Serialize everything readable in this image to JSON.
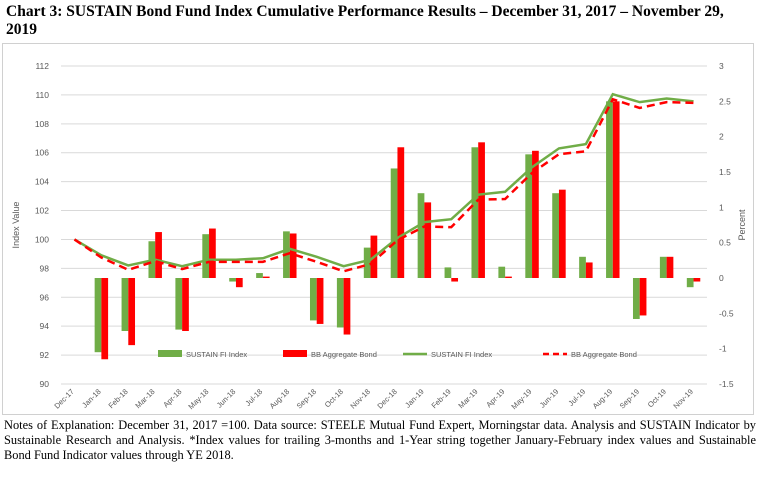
{
  "title": "Chart 3:  SUSTAIN Bond Fund Index Cumulative Performance Results – December 31, 2017 – November 29, 2019",
  "notes": "Notes of Explanation:  December 31, 2017 =100.  Data source:  STEELE Mutual Fund Expert, Morningstar data. Analysis and SUSTAIN Indicator by Sustainable Research and Analysis.  *Index values for trailing 3-months and 1-Year string together January-February index values and Sustainable Bond Fund Indicator values through YE 2018.",
  "colors": {
    "sustain": "#70ad47",
    "bb": "#ff0000",
    "grid": "#d9d9d9",
    "text": "#595959"
  },
  "chart_data": {
    "type": "bar",
    "title": "",
    "categories": [
      "Dec-17",
      "Jan-18",
      "Feb-18",
      "Mar-18",
      "Apr-18",
      "May-18",
      "Jun-18",
      "Jul-18",
      "Aug-18",
      "Sep-18",
      "Oct-18",
      "Nov-18",
      "Dec-18",
      "Jan-19",
      "Feb-19",
      "Mar-19",
      "Apr-19",
      "May-19",
      "Jun-19",
      "Jul-19",
      "Aug-19",
      "Sep-19",
      "Oct-19",
      "Nov-19"
    ],
    "ylabel": "Index Value",
    "ylim": [
      90,
      112
    ],
    "yticks": [
      90,
      92,
      94,
      96,
      98,
      100,
      102,
      104,
      106,
      108,
      110,
      112
    ],
    "y2label": "Percent",
    "y2lim": [
      -1.5,
      3
    ],
    "y2ticks": [
      "-1.5",
      "-1",
      "-0.5",
      "0",
      "0.5",
      "1",
      "1.5",
      "2",
      "2.5",
      "3"
    ],
    "grid": true,
    "legend": "inside-bottom-center",
    "series": [
      {
        "name": "SUSTAIN FI Index",
        "type": "bar",
        "axis": "right",
        "values": [
          null,
          -1.05,
          -0.75,
          0.52,
          -0.73,
          0.62,
          -0.05,
          0.07,
          0.66,
          -0.6,
          -0.7,
          0.43,
          1.55,
          1.2,
          0.15,
          1.85,
          0.16,
          1.75,
          1.2,
          0.3,
          2.5,
          -0.58,
          0.3,
          -0.13
        ]
      },
      {
        "name": "BB Aggregate Bond",
        "type": "bar",
        "axis": "right",
        "values": [
          null,
          -1.15,
          -0.95,
          0.65,
          -0.75,
          0.7,
          -0.13,
          0.02,
          0.63,
          -0.65,
          -0.8,
          0.6,
          1.85,
          1.07,
          -0.05,
          1.92,
          0.02,
          1.8,
          1.25,
          0.22,
          2.5,
          -0.53,
          0.3,
          -0.05
        ]
      },
      {
        "name": "SUSTAIN FI Index",
        "type": "line",
        "axis": "left",
        "values": [
          100,
          98.9,
          98.2,
          98.6,
          98.15,
          98.6,
          98.6,
          98.7,
          99.35,
          98.8,
          98.15,
          98.6,
          100.1,
          101.2,
          101.4,
          103.1,
          103.3,
          105,
          106.3,
          106.6,
          110.05,
          109.5,
          109.75,
          109.55
        ]
      },
      {
        "name": "BB Aggregate Bond",
        "type": "line",
        "axis": "left",
        "values": [
          100,
          98.75,
          97.9,
          98.5,
          97.95,
          98.45,
          98.45,
          98.45,
          99.05,
          98.45,
          97.8,
          98.3,
          99.95,
          100.9,
          100.85,
          102.75,
          102.8,
          104.6,
          105.9,
          106.1,
          109.7,
          109.1,
          109.5,
          109.45
        ]
      }
    ],
    "legend_entries": [
      "SUSTAIN FI Index",
      "BB Aggregate Bond",
      "SUSTAIN FI Index",
      "BB Aggregate Bond"
    ]
  }
}
